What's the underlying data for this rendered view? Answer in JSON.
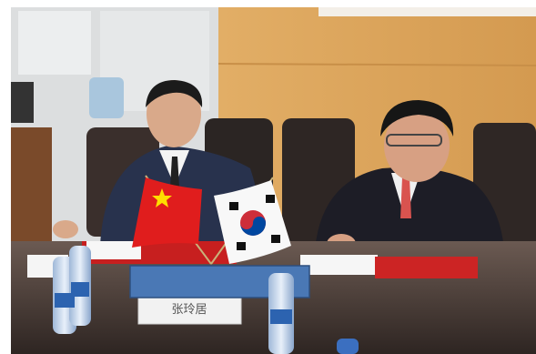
{
  "image": {
    "placard": {
      "text": "张玲居"
    }
  }
}
